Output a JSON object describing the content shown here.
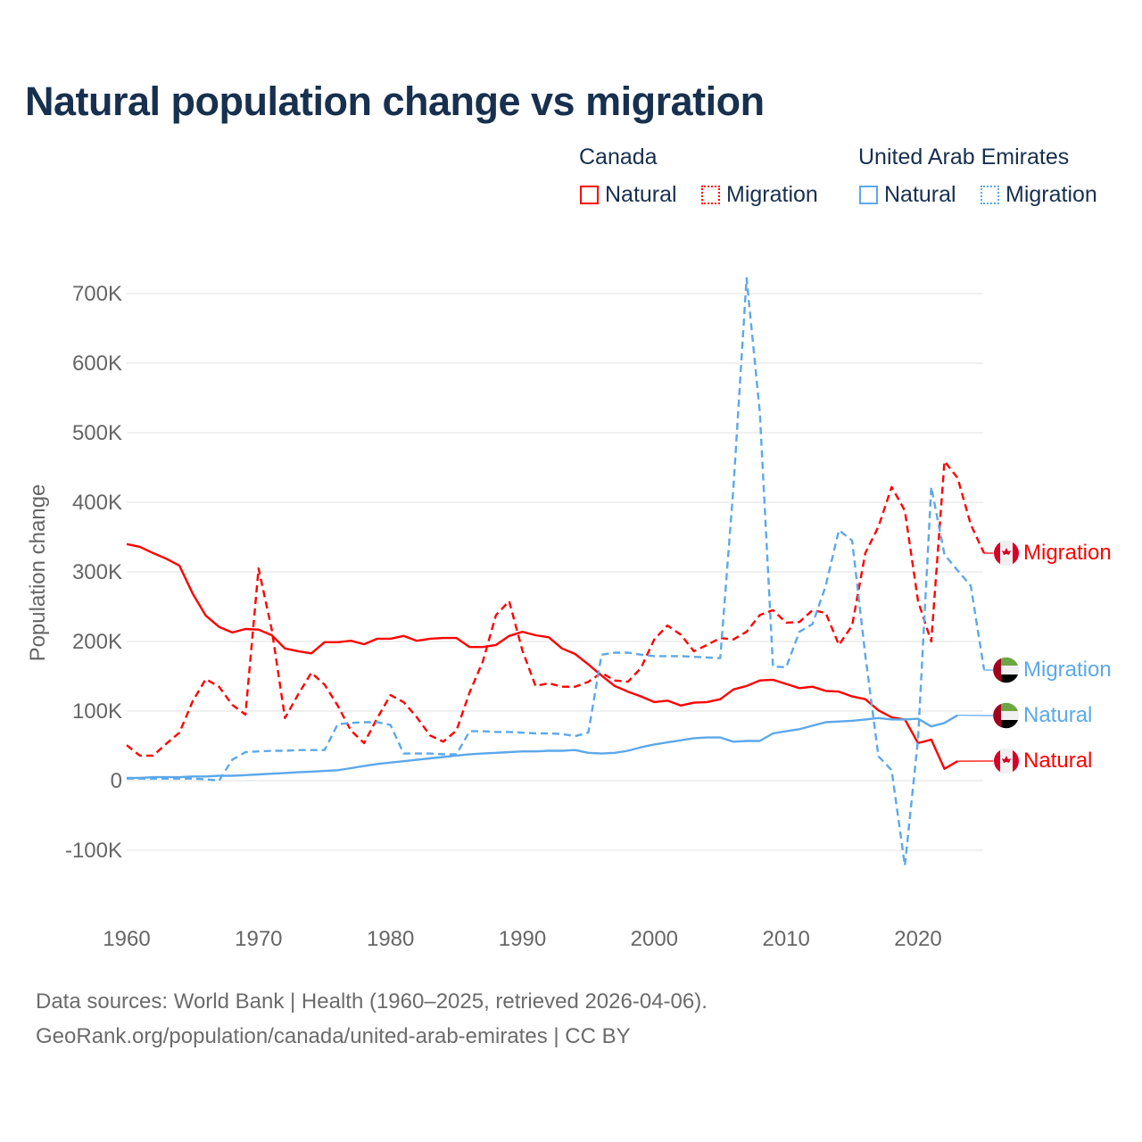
{
  "title": "Natural population change vs migration",
  "legend": {
    "groups": [
      {
        "name": "Canada",
        "color": "#ff0000",
        "items": [
          "Natural",
          "Migration"
        ]
      },
      {
        "name": "United Arab Emirates",
        "color": "#5ca8ea",
        "items": [
          "Natural",
          "Migration"
        ]
      }
    ]
  },
  "end_labels": {
    "canada_migration": "Migration",
    "uae_migration": "Migration",
    "uae_natural": "Natural",
    "canada_natural": "Natural"
  },
  "footer": {
    "line1": "Data sources: World Bank | Health (1960–2025, retrieved 2026-04-06).",
    "line2": "GeoRank.org/population/canada/united-arab-emirates | CC BY"
  },
  "chart_data": {
    "type": "line",
    "title": "Natural population change vs migration",
    "xlabel": "",
    "ylabel": "Population change",
    "xlim": [
      1960,
      2025
    ],
    "ylim": [
      -150,
      730
    ],
    "y_unit": "thousands",
    "x_ticks": [
      1960,
      1970,
      1980,
      1990,
      2000,
      2010,
      2020
    ],
    "x_tick_labels": [
      "1960",
      "1970",
      "1980",
      "1990",
      "2000",
      "2010",
      "2020"
    ],
    "y_ticks": [
      -100,
      0,
      100,
      200,
      300,
      400,
      500,
      600,
      700
    ],
    "y_tick_labels": [
      "-100K",
      "0",
      "100K",
      "200K",
      "300K",
      "400K",
      "500K",
      "600K",
      "700K"
    ],
    "grid": true,
    "start_year": 1960,
    "series": [
      {
        "name": "Canada Natural",
        "color": "#ff0000",
        "dash": false,
        "values": [
          340,
          336,
          327,
          319,
          309,
          269,
          237,
          221,
          213,
          218,
          217,
          209,
          190,
          186,
          183,
          199,
          199,
          201,
          196,
          204,
          204,
          208,
          201,
          204,
          205,
          205,
          192,
          192,
          195,
          208,
          214,
          209,
          206,
          190,
          182,
          167,
          151,
          136,
          128,
          121,
          113,
          115,
          108,
          112,
          113,
          117,
          131,
          136,
          144,
          145,
          139,
          133,
          135,
          129,
          128,
          121,
          117,
          101,
          91,
          88,
          54,
          59,
          17,
          28
        ]
      },
      {
        "name": "Canada Migration",
        "color": "#ff0000",
        "dash": true,
        "values": [
          51,
          36,
          36,
          53,
          69,
          114,
          146,
          135,
          109,
          95,
          305,
          217,
          90,
          124,
          155,
          138,
          108,
          72,
          54,
          90,
          123,
          113,
          91,
          65,
          56,
          72,
          127,
          171,
          238,
          258,
          187,
          136,
          140,
          135,
          135,
          142,
          155,
          144,
          142,
          162,
          203,
          223,
          210,
          186,
          195,
          205,
          203,
          214,
          238,
          245,
          227,
          228,
          245,
          241,
          195,
          223,
          327,
          365,
          422,
          388,
          258,
          200,
          459,
          435,
          368,
          327
        ]
      },
      {
        "name": "United Arab Emirates Natural",
        "color": "#5ca8ea",
        "dash": false,
        "values": [
          4,
          4,
          5,
          5,
          5,
          6,
          6,
          7,
          7,
          8,
          9,
          10,
          11,
          12,
          13,
          14,
          15,
          18,
          21,
          24,
          26,
          28,
          30,
          32,
          34,
          36,
          38,
          39,
          40,
          41,
          42,
          42,
          43,
          43,
          44,
          40,
          39,
          40,
          43,
          48,
          52,
          55,
          58,
          61,
          62,
          62,
          56,
          57,
          57,
          68,
          71,
          74,
          79,
          84,
          85,
          86,
          88,
          90,
          88,
          88,
          89,
          78,
          83,
          94
        ]
      },
      {
        "name": "United Arab Emirates Migration",
        "color": "#5ca8ea",
        "dash": true,
        "values": [
          3,
          3,
          3,
          3,
          3,
          3,
          2,
          0,
          30,
          41,
          42,
          43,
          43,
          44,
          44,
          44,
          81,
          83,
          84,
          84,
          80,
          39,
          39,
          39,
          38,
          38,
          71,
          71,
          70,
          70,
          69,
          68,
          68,
          67,
          64,
          69,
          181,
          184,
          184,
          181,
          179,
          179,
          179,
          178,
          177,
          176,
          420,
          722,
          530,
          164,
          163,
          214,
          225,
          280,
          360,
          345,
          180,
          35,
          15,
          -122,
          60,
          422,
          325,
          302,
          280,
          160
        ]
      }
    ]
  }
}
